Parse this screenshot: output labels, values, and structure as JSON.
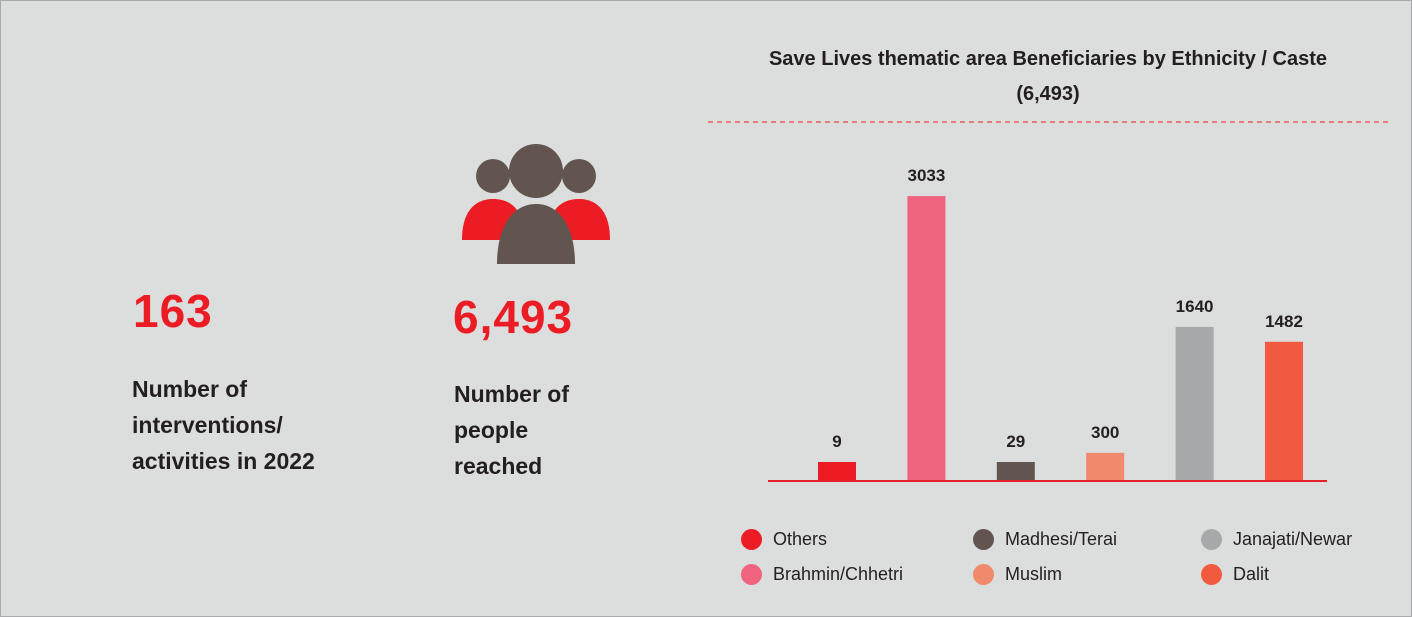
{
  "stats": {
    "interventions": {
      "number": "163",
      "label": "Number of interventions/ activities in 2022"
    },
    "people": {
      "number": "6,493",
      "label": "Number of people reached",
      "icon": "people-group-icon"
    }
  },
  "colors": {
    "accent_red": "#ec1c24",
    "icon_brown": "#625550",
    "axis": "#e8202a"
  },
  "chart_data": {
    "type": "bar",
    "title": "Save Lives thematic area Beneficiaries by Ethnicity / Caste (6,493)",
    "categories": [
      "Others",
      "Brahmin/Chhetri",
      "Madhesi/Terai",
      "Muslim",
      "Janajati/Newar",
      "Dalit"
    ],
    "values": [
      9,
      3033,
      29,
      300,
      1640,
      1482
    ],
    "colors": [
      "#ec1c24",
      "#f0637e",
      "#625550",
      "#f08a6c",
      "#a7a8aa",
      "#f15a3f"
    ],
    "data_labels": [
      "9",
      "3033",
      "29",
      "300",
      "1640",
      "1482"
    ],
    "xlabel": "",
    "ylabel": "",
    "ylim": [
      0,
      3300
    ],
    "grid": false,
    "legend": {
      "placement": "bottom",
      "items": [
        {
          "label": "Others",
          "color": "#ec1c24"
        },
        {
          "label": "Madhesi/Terai",
          "color": "#625550"
        },
        {
          "label": "Janajati/Newar",
          "color": "#a7a8aa"
        },
        {
          "label": "Brahmin/Chhetri",
          "color": "#f0637e"
        },
        {
          "label": "Muslim",
          "color": "#f08a6c"
        },
        {
          "label": "Dalit",
          "color": "#f15a3f"
        }
      ]
    }
  }
}
